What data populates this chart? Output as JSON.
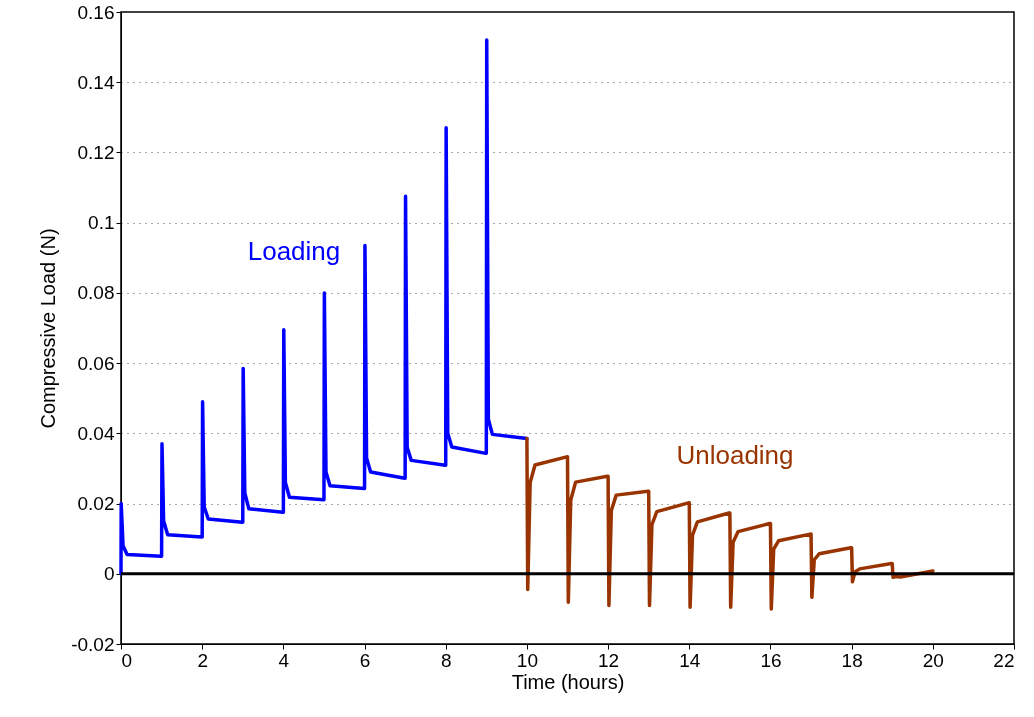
{
  "chart_data": {
    "type": "line",
    "xlabel": "Time (hours)",
    "ylabel": "Compressive Load (N)",
    "xlim": [
      0,
      22
    ],
    "ylim": [
      -0.02,
      0.16
    ],
    "xticks": [
      0,
      2,
      4,
      6,
      8,
      10,
      12,
      14,
      16,
      18,
      20,
      22
    ],
    "yticks": [
      -0.02,
      0,
      0.02,
      0.04,
      0.06,
      0.08,
      0.1,
      0.12,
      0.14,
      0.16
    ],
    "grid": "y",
    "line_style": "solid",
    "ref_lines": [
      {
        "axis": "y",
        "value": 0,
        "color": "#000000"
      }
    ],
    "series": [
      {
        "name": "Loading",
        "color": "#0000ff",
        "x": [
          0,
          0.005,
          0.05,
          0.15,
          0.99,
          1,
          1.01,
          1.05,
          1.15,
          1.99,
          2,
          2.01,
          2.05,
          2.15,
          2.99,
          3,
          3.01,
          3.05,
          3.15,
          3.99,
          4,
          4.01,
          4.05,
          4.15,
          4.99,
          5,
          5.01,
          5.05,
          5.15,
          5.99,
          6,
          6.01,
          6.05,
          6.15,
          6.99,
          7,
          7.01,
          7.05,
          7.15,
          7.99,
          8,
          8.01,
          8.05,
          8.15,
          8.99,
          9,
          9.01,
          9.05,
          9.15,
          10
        ],
        "values": [
          0,
          0.02,
          0.008,
          0.0055,
          0.005,
          0.005,
          0.037,
          0.015,
          0.0111,
          0.0105,
          0.0105,
          0.049,
          0.019,
          0.0156,
          0.0147,
          0.0147,
          0.0585,
          0.023,
          0.0185,
          0.0175,
          0.0175,
          0.0695,
          0.026,
          0.0218,
          0.0211,
          0.0211,
          0.08,
          0.029,
          0.0251,
          0.0243,
          0.0243,
          0.0935,
          0.033,
          0.029,
          0.0272,
          0.0272,
          0.1075,
          0.036,
          0.0323,
          0.0309,
          0.0309,
          0.127,
          0.04,
          0.0361,
          0.0343,
          0.0343,
          0.152,
          0.044,
          0.0397,
          0.0385
        ]
      },
      {
        "name": "Unloading",
        "color": "#993300",
        "x": [
          10,
          10.02,
          10.08,
          10.2,
          10.98,
          11,
          11.02,
          11.08,
          11.2,
          11.98,
          12,
          12.02,
          12.08,
          12.2,
          12.98,
          13,
          13.02,
          13.08,
          13.2,
          13.98,
          14,
          14.02,
          14.08,
          14.2,
          14.98,
          15,
          15.02,
          15.08,
          15.2,
          15.98,
          16,
          16.02,
          16.08,
          16.2,
          16.98,
          17,
          17.02,
          17.08,
          17.2,
          17.98,
          18,
          18.02,
          18.08,
          18.2,
          18.98,
          19,
          19.02,
          19.08,
          19.2,
          20
        ],
        "values": [
          0.0385,
          -0.0045,
          0.026,
          0.031,
          0.0333,
          0.0333,
          -0.0081,
          0.021,
          0.0261,
          0.0278,
          0.0278,
          -0.009,
          0.018,
          0.0224,
          0.0235,
          0.0235,
          -0.009,
          0.014,
          0.0177,
          0.0202,
          0.0202,
          -0.0095,
          0.011,
          0.0148,
          0.0173,
          0.0173,
          -0.0095,
          0.009,
          0.012,
          0.0143,
          0.0143,
          -0.01,
          0.007,
          0.0094,
          0.0113,
          0.0113,
          -0.0067,
          0.004,
          0.0057,
          0.0074,
          0.0074,
          -0.0023,
          0.0005,
          0.0014,
          0.0029,
          0.0029,
          -0.001,
          -0.0008,
          -0.0009,
          0.0008
        ]
      }
    ]
  }
}
